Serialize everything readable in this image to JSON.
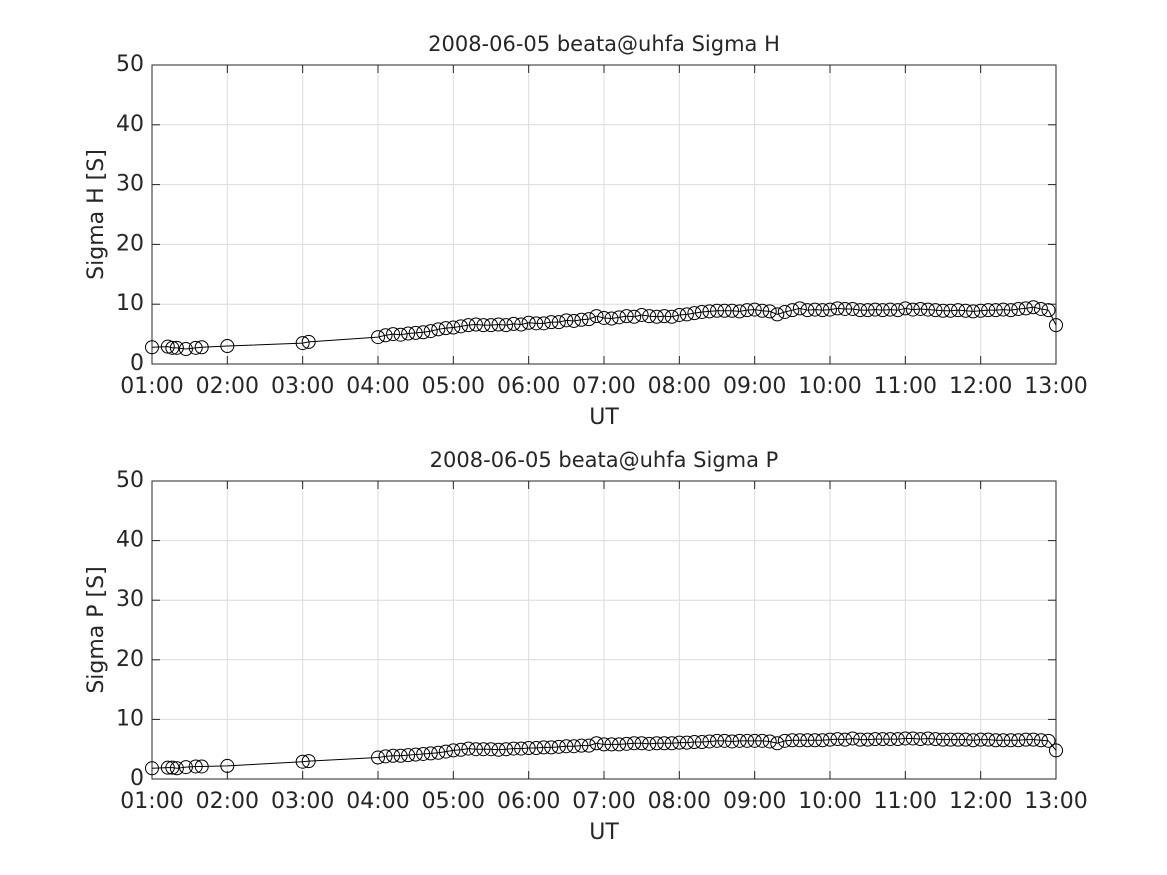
{
  "chart_data": [
    {
      "type": "line",
      "title": "2008-06-05  beata@uhfa Sigma H",
      "xlabel": "UT",
      "ylabel": "Sigma H [S]",
      "color": "#000000",
      "marker": "circle",
      "grid": true,
      "xlim": [
        1,
        13
      ],
      "ylim": [
        0,
        50
      ],
      "xticks": [
        {
          "value": 1,
          "label": "01:00"
        },
        {
          "value": 2,
          "label": "02:00"
        },
        {
          "value": 3,
          "label": "03:00"
        },
        {
          "value": 4,
          "label": "04:00"
        },
        {
          "value": 5,
          "label": "05:00"
        },
        {
          "value": 6,
          "label": "06:00"
        },
        {
          "value": 7,
          "label": "07:00"
        },
        {
          "value": 8,
          "label": "08:00"
        },
        {
          "value": 9,
          "label": "09:00"
        },
        {
          "value": 10,
          "label": "10:00"
        },
        {
          "value": 11,
          "label": "11:00"
        },
        {
          "value": 12,
          "label": "12:00"
        },
        {
          "value": 13,
          "label": "13:00"
        }
      ],
      "yticks": [
        0,
        10,
        20,
        30,
        40,
        50
      ],
      "x": [
        1.0,
        1.21,
        1.27,
        1.33,
        1.45,
        1.58,
        1.66,
        2.0,
        3.0,
        3.08,
        4.0,
        4.1,
        4.2,
        4.3,
        4.4,
        4.5,
        4.6,
        4.7,
        4.8,
        4.9,
        5.0,
        5.1,
        5.2,
        5.3,
        5.4,
        5.5,
        5.6,
        5.7,
        5.8,
        5.9,
        6.0,
        6.1,
        6.2,
        6.3,
        6.4,
        6.5,
        6.6,
        6.7,
        6.8,
        6.9,
        7.0,
        7.1,
        7.2,
        7.3,
        7.4,
        7.5,
        7.6,
        7.7,
        7.8,
        7.9,
        8.0,
        8.1,
        8.2,
        8.3,
        8.4,
        8.5,
        8.6,
        8.7,
        8.8,
        8.9,
        9.0,
        9.1,
        9.2,
        9.3,
        9.4,
        9.5,
        9.6,
        9.7,
        9.8,
        9.9,
        10.0,
        10.1,
        10.2,
        10.3,
        10.4,
        10.5,
        10.6,
        10.7,
        10.8,
        10.9,
        11.0,
        11.1,
        11.2,
        11.3,
        11.4,
        11.5,
        11.6,
        11.7,
        11.8,
        11.9,
        12.0,
        12.1,
        12.2,
        12.3,
        12.4,
        12.5,
        12.6,
        12.7,
        12.8,
        12.9,
        13.0
      ],
      "values": [
        2.8,
        2.9,
        2.7,
        2.7,
        2.5,
        2.7,
        2.8,
        3.0,
        3.5,
        3.7,
        4.5,
        4.8,
        5.0,
        4.9,
        5.1,
        5.2,
        5.3,
        5.5,
        5.8,
        6.0,
        6.1,
        6.3,
        6.5,
        6.6,
        6.5,
        6.5,
        6.6,
        6.5,
        6.7,
        6.6,
        6.9,
        6.8,
        6.8,
        7.0,
        7.0,
        7.3,
        7.2,
        7.4,
        7.5,
        8.0,
        7.7,
        7.6,
        7.8,
        8.0,
        7.9,
        8.2,
        8.0,
        7.9,
        8.0,
        7.9,
        8.2,
        8.3,
        8.5,
        8.7,
        8.8,
        8.9,
        8.9,
        8.9,
        8.8,
        9.0,
        9.1,
        8.9,
        8.8,
        8.3,
        8.7,
        9.0,
        9.3,
        9.0,
        9.1,
        9.0,
        9.1,
        9.3,
        9.2,
        9.2,
        9.0,
        9.0,
        9.1,
        9.0,
        9.1,
        9.0,
        9.3,
        9.1,
        9.2,
        9.1,
        9.0,
        8.9,
        8.9,
        9.0,
        8.9,
        8.8,
        8.9,
        9.0,
        9.0,
        9.1,
        9.0,
        9.2,
        9.3,
        9.5,
        9.2,
        9.0,
        6.5
      ]
    },
    {
      "type": "line",
      "title": "2008-06-05  beata@uhfa Sigma P",
      "xlabel": "UT",
      "ylabel": "Sigma P [S]",
      "color": "#000000",
      "marker": "circle",
      "grid": true,
      "xlim": [
        1,
        13
      ],
      "ylim": [
        0,
        50
      ],
      "xticks": [
        {
          "value": 1,
          "label": "01:00"
        },
        {
          "value": 2,
          "label": "02:00"
        },
        {
          "value": 3,
          "label": "03:00"
        },
        {
          "value": 4,
          "label": "04:00"
        },
        {
          "value": 5,
          "label": "05:00"
        },
        {
          "value": 6,
          "label": "06:00"
        },
        {
          "value": 7,
          "label": "07:00"
        },
        {
          "value": 8,
          "label": "08:00"
        },
        {
          "value": 9,
          "label": "09:00"
        },
        {
          "value": 10,
          "label": "10:00"
        },
        {
          "value": 11,
          "label": "11:00"
        },
        {
          "value": 12,
          "label": "12:00"
        },
        {
          "value": 13,
          "label": "13:00"
        }
      ],
      "yticks": [
        0,
        10,
        20,
        30,
        40,
        50
      ],
      "x": [
        1.0,
        1.21,
        1.27,
        1.33,
        1.45,
        1.58,
        1.66,
        2.0,
        3.0,
        3.08,
        4.0,
        4.1,
        4.2,
        4.3,
        4.4,
        4.5,
        4.6,
        4.7,
        4.8,
        4.9,
        5.0,
        5.1,
        5.2,
        5.3,
        5.4,
        5.5,
        5.6,
        5.7,
        5.8,
        5.9,
        6.0,
        6.1,
        6.2,
        6.3,
        6.4,
        6.5,
        6.6,
        6.7,
        6.8,
        6.9,
        7.0,
        7.1,
        7.2,
        7.3,
        7.4,
        7.5,
        7.6,
        7.7,
        7.8,
        7.9,
        8.0,
        8.1,
        8.2,
        8.3,
        8.4,
        8.5,
        8.6,
        8.7,
        8.8,
        8.9,
        9.0,
        9.1,
        9.2,
        9.3,
        9.4,
        9.5,
        9.6,
        9.7,
        9.8,
        9.9,
        10.0,
        10.1,
        10.2,
        10.3,
        10.4,
        10.5,
        10.6,
        10.7,
        10.8,
        10.9,
        11.0,
        11.1,
        11.2,
        11.3,
        11.4,
        11.5,
        11.6,
        11.7,
        11.8,
        11.9,
        12.0,
        12.1,
        12.2,
        12.3,
        12.4,
        12.5,
        12.6,
        12.7,
        12.8,
        12.9,
        13.0
      ],
      "values": [
        1.8,
        1.9,
        1.9,
        1.8,
        2.0,
        2.1,
        2.1,
        2.2,
        2.9,
        3.0,
        3.6,
        3.8,
        3.9,
        3.9,
        4.0,
        4.1,
        4.2,
        4.3,
        4.4,
        4.6,
        4.8,
        4.9,
        5.1,
        5.0,
        5.0,
        5.0,
        4.9,
        5.0,
        5.1,
        5.1,
        5.2,
        5.2,
        5.3,
        5.3,
        5.4,
        5.5,
        5.5,
        5.6,
        5.6,
        6.0,
        5.8,
        5.8,
        5.8,
        5.9,
        6.0,
        6.0,
        5.9,
        6.0,
        6.0,
        6.0,
        6.1,
        6.1,
        6.2,
        6.2,
        6.3,
        6.4,
        6.4,
        6.3,
        6.4,
        6.4,
        6.4,
        6.4,
        6.3,
        6.0,
        6.4,
        6.5,
        6.5,
        6.5,
        6.5,
        6.5,
        6.6,
        6.7,
        6.6,
        6.8,
        6.6,
        6.6,
        6.7,
        6.7,
        6.7,
        6.7,
        6.8,
        6.8,
        6.7,
        6.8,
        6.7,
        6.6,
        6.6,
        6.6,
        6.6,
        6.5,
        6.6,
        6.6,
        6.5,
        6.5,
        6.5,
        6.5,
        6.6,
        6.6,
        6.5,
        6.4,
        4.8
      ]
    }
  ]
}
